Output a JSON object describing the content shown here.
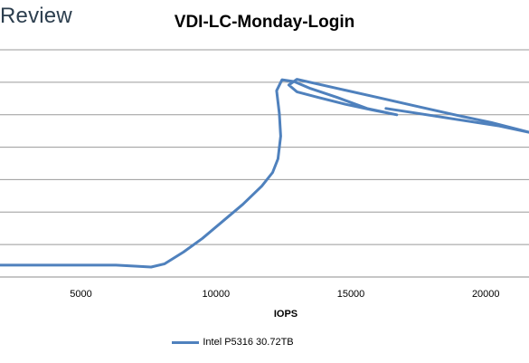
{
  "brand": "Review",
  "chart_data": {
    "type": "line",
    "title": "VDI-LC-Monday-Login",
    "xlabel": "IOPS",
    "ylabel": "",
    "xlim": [
      2000,
      21600
    ],
    "xticks": [
      5000,
      10000,
      15000,
      20000
    ],
    "ylim": [
      0,
      1
    ],
    "grid": true,
    "legend_position": "bottom",
    "color": "#4f81bd",
    "series": [
      {
        "name": "Intel P5316 30.72TB",
        "points": [
          [
            2000,
            0.052
          ],
          [
            3500,
            0.052
          ],
          [
            5000,
            0.052
          ],
          [
            6300,
            0.052
          ],
          [
            7000,
            0.048
          ],
          [
            7600,
            0.044
          ],
          [
            8100,
            0.058
          ],
          [
            8800,
            0.11
          ],
          [
            9500,
            0.17
          ],
          [
            10200,
            0.24
          ],
          [
            11000,
            0.32
          ],
          [
            11700,
            0.4
          ],
          [
            12100,
            0.46
          ],
          [
            12300,
            0.52
          ],
          [
            12400,
            0.62
          ],
          [
            12350,
            0.72
          ],
          [
            12250,
            0.82
          ],
          [
            12450,
            0.868
          ],
          [
            12900,
            0.86
          ],
          [
            13500,
            0.83
          ],
          [
            14500,
            0.79
          ],
          [
            15600,
            0.742
          ],
          [
            16700,
            0.714
          ],
          [
            15800,
            0.735
          ],
          [
            14800,
            0.76
          ],
          [
            13800,
            0.79
          ],
          [
            13000,
            0.815
          ],
          [
            12700,
            0.845
          ],
          [
            13000,
            0.87
          ],
          [
            14500,
            0.83
          ],
          [
            16000,
            0.79
          ],
          [
            17500,
            0.75
          ],
          [
            19000,
            0.71
          ],
          [
            20200,
            0.68
          ],
          [
            21600,
            0.637
          ],
          [
            20500,
            0.665
          ],
          [
            19000,
            0.692
          ],
          [
            17500,
            0.72
          ],
          [
            16300,
            0.742
          ]
        ]
      }
    ]
  }
}
